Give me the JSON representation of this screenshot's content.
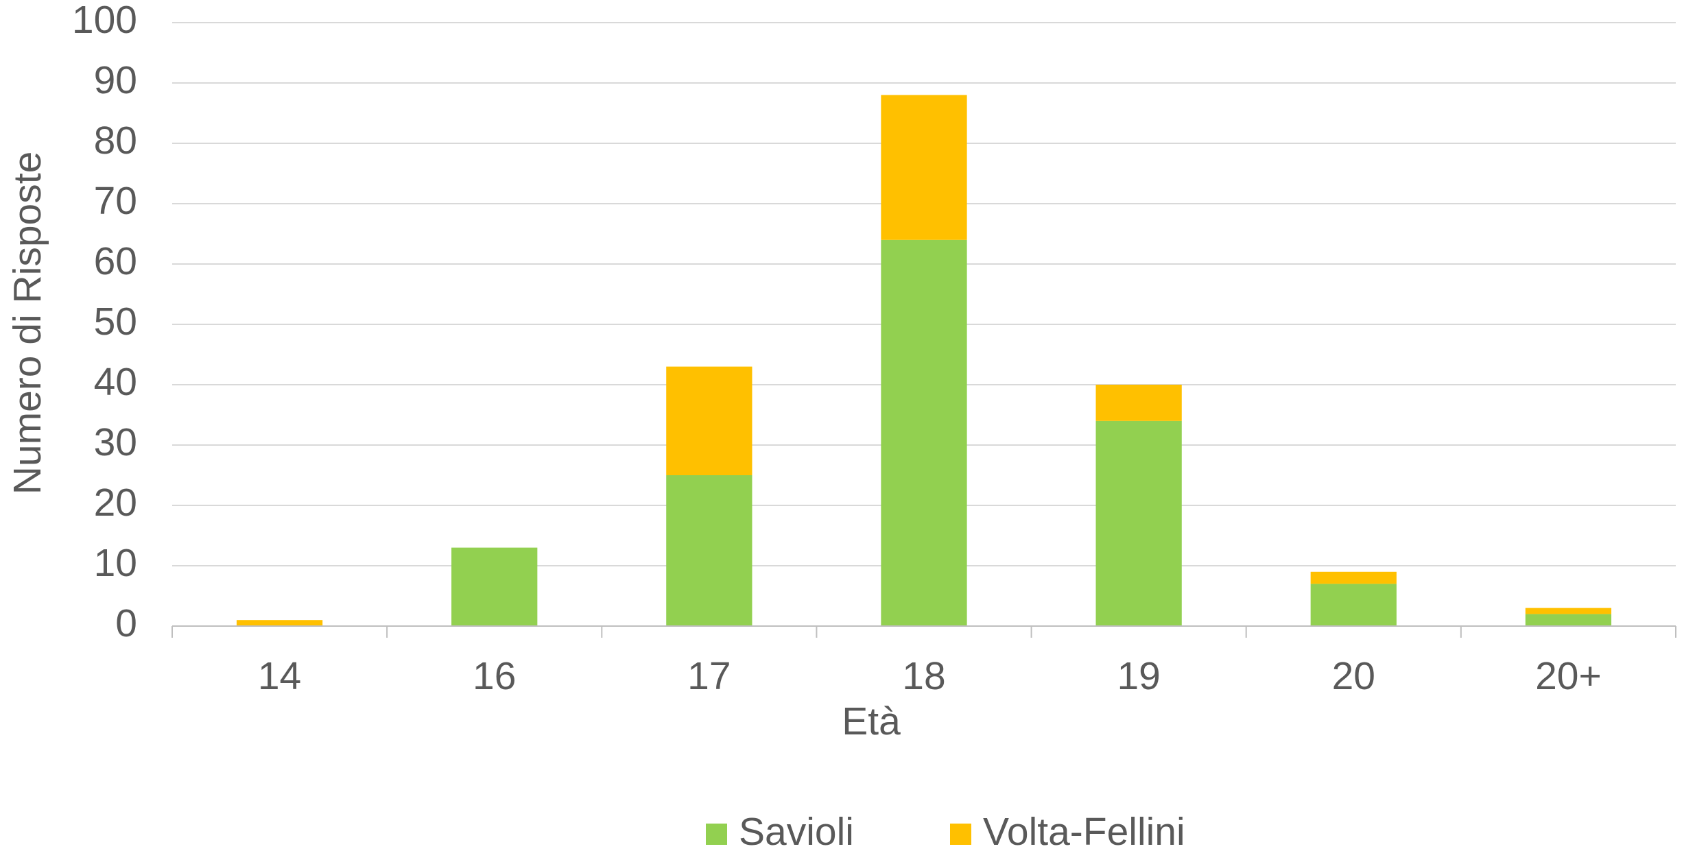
{
  "chart_data": {
    "type": "stacked_bar",
    "categories": [
      "14",
      "16",
      "17",
      "18",
      "19",
      "20",
      "20+"
    ],
    "series": [
      {
        "name": "Savioli",
        "color": "#92d050",
        "values": [
          0,
          13,
          25,
          64,
          34,
          7,
          2
        ]
      },
      {
        "name": "Volta-Fellini",
        "color": "#ffc000",
        "values": [
          1,
          0,
          18,
          24,
          6,
          2,
          1
        ]
      }
    ],
    "x_label": "Età",
    "y_label": "Numero di Risposte",
    "ylim": [
      0,
      100
    ],
    "yticks": [
      0,
      10,
      20,
      30,
      40,
      50,
      60,
      70,
      80,
      90,
      100
    ],
    "grid": true,
    "legend": "bottom"
  }
}
